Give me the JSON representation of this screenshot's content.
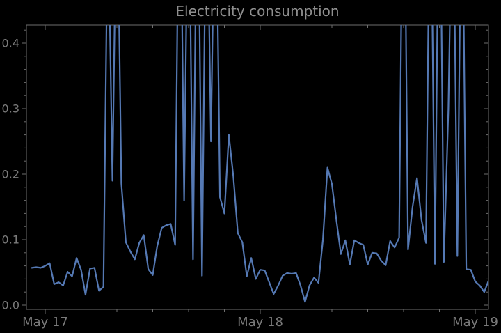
{
  "chart_data": {
    "type": "line",
    "title": "Electricity consumption",
    "xlabel": "",
    "ylabel": "",
    "x_tick_labels": [
      "May 17",
      "May 18",
      "May 19"
    ],
    "x_tick_hours": [
      0,
      24,
      48
    ],
    "x_minor_tick_hours": [
      4,
      8,
      12,
      16,
      20,
      28,
      32,
      36,
      40,
      44
    ],
    "y_tick_labels": [
      "0.0",
      "0.1",
      "0.2",
      "0.3",
      "0.4"
    ],
    "y_tick_values": [
      0.0,
      0.1,
      0.2,
      0.3,
      0.4
    ],
    "y_minor_step": 0.02,
    "ylim": [
      -0.006,
      0.428
    ],
    "xlim_hours": [
      -2.1,
      49.5
    ],
    "grid": false,
    "legend": null,
    "series_name": "electricity consumption",
    "start_time": "May 16 22:30",
    "interval_minutes": 30,
    "clip_note": "spike values exceed the visible axis top (0.428) and are clipped; clipped samples stored as estimated >0.43 values",
    "points": [
      [
        -1.5,
        0.057
      ],
      [
        -1.0,
        0.058
      ],
      [
        -0.5,
        0.057
      ],
      [
        0.0,
        0.06
      ],
      [
        0.5,
        0.064
      ],
      [
        1.0,
        0.032
      ],
      [
        1.5,
        0.035
      ],
      [
        2.0,
        0.03
      ],
      [
        2.5,
        0.051
      ],
      [
        3.0,
        0.044
      ],
      [
        3.5,
        0.072
      ],
      [
        4.0,
        0.054
      ],
      [
        4.5,
        0.016
      ],
      [
        5.0,
        0.056
      ],
      [
        5.5,
        0.057
      ],
      [
        6.0,
        0.022
      ],
      [
        6.5,
        0.028
      ],
      [
        7.0,
        0.62
      ],
      [
        7.5,
        0.19
      ],
      [
        8.0,
        0.68
      ],
      [
        8.5,
        0.186
      ],
      [
        9.0,
        0.096
      ],
      [
        9.5,
        0.082
      ],
      [
        10.0,
        0.07
      ],
      [
        10.5,
        0.095
      ],
      [
        11.0,
        0.107
      ],
      [
        11.5,
        0.055
      ],
      [
        12.0,
        0.046
      ],
      [
        12.5,
        0.09
      ],
      [
        13.0,
        0.118
      ],
      [
        13.5,
        0.122
      ],
      [
        14.0,
        0.124
      ],
      [
        14.5,
        0.092
      ],
      [
        15.0,
        0.78
      ],
      [
        15.5,
        0.16
      ],
      [
        16.0,
        0.72
      ],
      [
        16.5,
        0.07
      ],
      [
        17.0,
        0.75
      ],
      [
        17.5,
        0.045
      ],
      [
        18.0,
        0.7
      ],
      [
        18.5,
        0.25
      ],
      [
        19.0,
        0.72
      ],
      [
        19.5,
        0.165
      ],
      [
        20.0,
        0.14
      ],
      [
        20.5,
        0.26
      ],
      [
        21.0,
        0.196
      ],
      [
        21.5,
        0.11
      ],
      [
        22.0,
        0.096
      ],
      [
        22.5,
        0.044
      ],
      [
        23.0,
        0.072
      ],
      [
        23.5,
        0.04
      ],
      [
        24.0,
        0.054
      ],
      [
        24.5,
        0.053
      ],
      [
        25.0,
        0.035
      ],
      [
        25.5,
        0.017
      ],
      [
        26.0,
        0.03
      ],
      [
        26.5,
        0.045
      ],
      [
        27.0,
        0.049
      ],
      [
        27.5,
        0.048
      ],
      [
        28.0,
        0.049
      ],
      [
        28.5,
        0.03
      ],
      [
        29.0,
        0.005
      ],
      [
        29.5,
        0.03
      ],
      [
        30.0,
        0.042
      ],
      [
        30.5,
        0.034
      ],
      [
        31.0,
        0.1
      ],
      [
        31.5,
        0.21
      ],
      [
        32.0,
        0.185
      ],
      [
        32.5,
        0.13
      ],
      [
        33.0,
        0.078
      ],
      [
        33.5,
        0.099
      ],
      [
        34.0,
        0.062
      ],
      [
        34.5,
        0.099
      ],
      [
        35.0,
        0.095
      ],
      [
        35.5,
        0.092
      ],
      [
        36.0,
        0.062
      ],
      [
        36.5,
        0.08
      ],
      [
        37.0,
        0.079
      ],
      [
        37.5,
        0.068
      ],
      [
        38.0,
        0.061
      ],
      [
        38.5,
        0.098
      ],
      [
        39.0,
        0.088
      ],
      [
        39.5,
        0.103
      ],
      [
        40.0,
        0.8
      ],
      [
        40.5,
        0.085
      ],
      [
        41.0,
        0.15
      ],
      [
        41.5,
        0.194
      ],
      [
        42.0,
        0.13
      ],
      [
        42.5,
        0.095
      ],
      [
        43.0,
        0.72
      ],
      [
        43.5,
        0.063
      ],
      [
        44.0,
        0.75
      ],
      [
        44.5,
        0.066
      ],
      [
        45.0,
        0.3
      ],
      [
        45.5,
        0.7
      ],
      [
        46.0,
        0.075
      ],
      [
        46.5,
        0.72
      ],
      [
        47.0,
        0.055
      ],
      [
        47.5,
        0.054
      ],
      [
        48.0,
        0.036
      ],
      [
        48.5,
        0.03
      ],
      [
        49.0,
        0.02
      ],
      [
        49.5,
        0.038
      ]
    ]
  },
  "colors": {
    "background": "#000000",
    "line": "#5579b4",
    "frame": "#6e6e6e",
    "tick_label": "#7a7a7a",
    "title": "#8f8f8f"
  }
}
